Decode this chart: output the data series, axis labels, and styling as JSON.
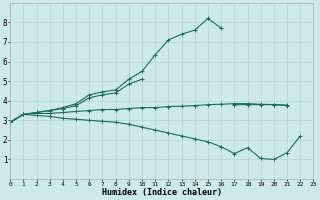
{
  "xlabel": "Humidex (Indice chaleur)",
  "bg_color": "#ceeae8",
  "grid_color": "#b8d8d6",
  "line_color": "#1a6b5a",
  "x_values": [
    0,
    1,
    2,
    3,
    4,
    5,
    6,
    7,
    8,
    9,
    10,
    11,
    12,
    13,
    14,
    15,
    16,
    17,
    18,
    19,
    20,
    21,
    22,
    23
  ],
  "x_labels": [
    "0",
    "1",
    "2",
    "3",
    "4",
    "5",
    "6",
    "7",
    "8",
    "9",
    "10",
    "11",
    "12",
    "13",
    "14",
    "15",
    "16",
    "17",
    "18",
    "19",
    "20",
    "21",
    "22",
    "23"
  ],
  "line_top": [
    2.9,
    3.3,
    3.4,
    3.5,
    3.65,
    3.85,
    4.3,
    4.45,
    4.55,
    5.1,
    5.5,
    6.35,
    7.1,
    7.4,
    7.6,
    8.2,
    7.7,
    null,
    null,
    null,
    null,
    null,
    null,
    null
  ],
  "line_upper_flat": [
    2.9,
    3.3,
    3.4,
    3.5,
    3.6,
    3.75,
    4.15,
    4.3,
    4.4,
    4.85,
    5.1,
    null,
    null,
    null,
    null,
    null,
    null,
    3.8,
    3.8,
    3.8,
    3.8,
    3.75,
    null,
    null
  ],
  "line_lower_flat": [
    2.9,
    3.3,
    3.35,
    3.35,
    3.4,
    3.45,
    3.5,
    3.55,
    3.55,
    3.6,
    3.65,
    3.65,
    3.7,
    3.72,
    3.75,
    3.8,
    3.82,
    3.85,
    3.85,
    3.82,
    3.8,
    3.78,
    null,
    null
  ],
  "line_min": [
    2.9,
    3.3,
    3.25,
    3.2,
    3.1,
    3.05,
    3.0,
    2.95,
    2.9,
    2.8,
    2.65,
    2.5,
    2.35,
    2.2,
    2.05,
    1.9,
    1.65,
    1.3,
    1.6,
    1.05,
    1.0,
    1.35,
    2.2,
    null
  ],
  "xlim": [
    0,
    23
  ],
  "ylim": [
    0,
    9
  ],
  "yticks": [
    1,
    2,
    3,
    4,
    5,
    6,
    7,
    8
  ]
}
